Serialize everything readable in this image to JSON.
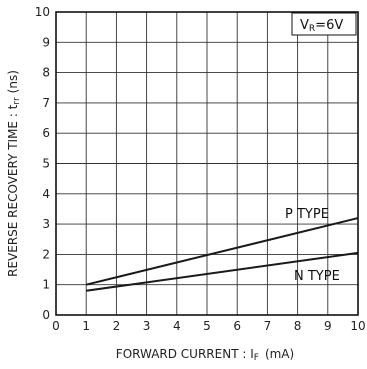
{
  "chart_data": {
    "type": "line",
    "xlabel_main": "FORWARD CURRENT : I",
    "xlabel_sub": "F",
    "xlabel_unit": "(mA)",
    "ylabel_main": "REVERSE RECOVERY TIME : t",
    "ylabel_sub": "rr",
    "ylabel_unit": "(ns)",
    "xlim": [
      0,
      10
    ],
    "ylim": [
      0,
      10
    ],
    "xticks": [
      "0",
      "1",
      "2",
      "3",
      "4",
      "5",
      "6",
      "7",
      "8",
      "9",
      "10"
    ],
    "yticks": [
      "0",
      "1",
      "2",
      "3",
      "4",
      "5",
      "6",
      "7",
      "8",
      "9",
      "10"
    ],
    "grid": true,
    "condition_box": {
      "main": "V",
      "sub": "R",
      "rest": "=6V",
      "placement": "top-right"
    },
    "series": [
      {
        "name": "P TYPE",
        "x": [
          1,
          10
        ],
        "y": [
          1.0,
          3.2
        ]
      },
      {
        "name": "N TYPE",
        "x": [
          1,
          10
        ],
        "y": [
          0.8,
          2.05
        ]
      }
    ]
  },
  "colors": {
    "line": "#1a1a1a",
    "grid": "#333333"
  }
}
